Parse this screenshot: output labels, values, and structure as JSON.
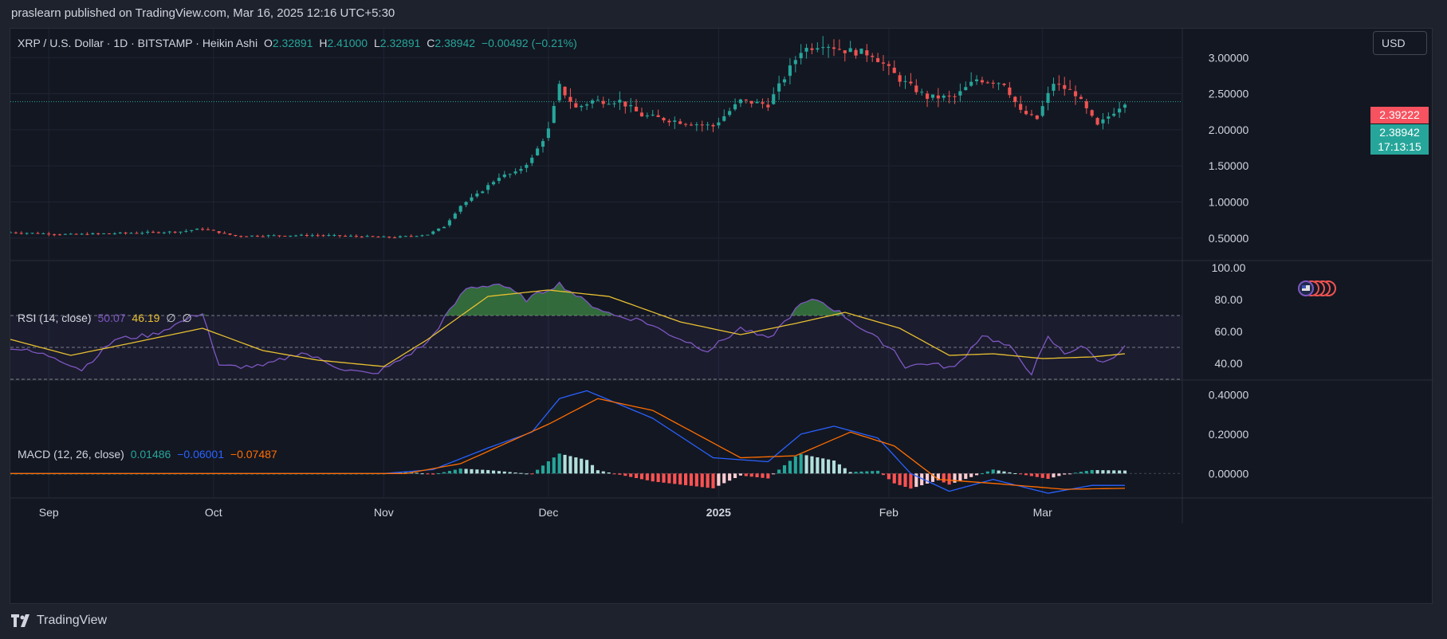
{
  "header": {
    "published": "praslearn published on TradingView.com, Mar 16, 2025 12:16 UTC+5:30"
  },
  "symbol": {
    "name": "XRP / U.S. Dollar · 1D · BITSTAMP · Heikin Ashi",
    "o_label": "O",
    "o": "2.32891",
    "h_label": "H",
    "h": "2.41000",
    "l_label": "L",
    "l": "2.32891",
    "c_label": "C",
    "c": "2.38942",
    "change": "−0.00492 (−0.21%)"
  },
  "currency": "USD",
  "price_tag": "2.39222",
  "close_tag": {
    "price": "2.38942",
    "countdown": "17:13:15"
  },
  "rsi_legend": {
    "label": "RSI (14, close)",
    "rsi": "50.07",
    "ma": "46.19",
    "s1": "∅",
    "s2": "∅"
  },
  "macd_legend": {
    "label": "MACD (12, 26, close)",
    "hist": "0.01486",
    "macd": "−0.06001",
    "signal": "−0.07487"
  },
  "footer": {
    "brand": "TradingView"
  },
  "colors": {
    "up": "#26a69a",
    "down": "#ef5350",
    "rsi": "#7e57c2",
    "rsi_ma": "#e8c030",
    "macd": "#2962ff",
    "signal": "#ff6d00",
    "hist_up_dark": "#26a69a",
    "hist_up_light": "#b2dfdb",
    "hist_down_dark": "#ff5252",
    "hist_down_light": "#ffcdd2"
  },
  "chart_data": [
    {
      "type": "candlestick",
      "pane": "price",
      "y_axis_ticks": [
        "3.00000",
        "2.50000",
        "2.00000",
        "1.50000",
        "1.00000",
        "0.50000"
      ],
      "y_ticks": [
        3.0,
        2.5,
        2.0,
        1.5,
        1.0,
        0.5
      ],
      "ylim": [
        0.2,
        3.4
      ],
      "x_labels": [
        "Sep",
        "Oct",
        "Nov",
        "Dec",
        "2025",
        "Feb",
        "Mar"
      ],
      "x_label_dates": [
        "2024-09-01",
        "2024-10-01",
        "2024-11-01",
        "2024-12-01",
        "2025-01-01",
        "2025-02-01",
        "2025-03-01"
      ],
      "date_range": [
        "2024-08-25",
        "2025-03-16"
      ],
      "current_price": 2.38942,
      "close_anchors": [
        [
          "2024-08-25",
          0.58
        ],
        [
          "2024-09-05",
          0.55
        ],
        [
          "2024-09-15",
          0.57
        ],
        [
          "2024-09-25",
          0.59
        ],
        [
          "2024-09-29",
          0.63
        ],
        [
          "2024-10-05",
          0.53
        ],
        [
          "2024-10-20",
          0.54
        ],
        [
          "2024-11-03",
          0.51
        ],
        [
          "2024-11-09",
          0.55
        ],
        [
          "2024-11-12",
          0.66
        ],
        [
          "2024-11-15",
          0.95
        ],
        [
          "2024-11-18",
          1.1
        ],
        [
          "2024-11-22",
          1.35
        ],
        [
          "2024-11-25",
          1.4
        ],
        [
          "2024-11-28",
          1.6
        ],
        [
          "2024-12-01",
          2.0
        ],
        [
          "2024-12-03",
          2.6
        ],
        [
          "2024-12-06",
          2.3
        ],
        [
          "2024-12-09",
          2.4
        ],
        [
          "2024-12-14",
          2.4
        ],
        [
          "2024-12-18",
          2.2
        ],
        [
          "2024-12-26",
          2.1
        ],
        [
          "2024-12-31",
          2.05
        ],
        [
          "2025-01-05",
          2.4
        ],
        [
          "2025-01-10",
          2.35
        ],
        [
          "2025-01-16",
          3.1
        ],
        [
          "2025-01-20",
          3.2
        ],
        [
          "2025-01-24",
          3.1
        ],
        [
          "2025-01-29",
          3.05
        ],
        [
          "2025-02-03",
          2.7
        ],
        [
          "2025-02-08",
          2.45
        ],
        [
          "2025-02-13",
          2.45
        ],
        [
          "2025-02-17",
          2.7
        ],
        [
          "2025-02-22",
          2.65
        ],
        [
          "2025-02-25",
          2.25
        ],
        [
          "2025-02-28",
          2.15
        ],
        [
          "2025-03-03",
          2.65
        ],
        [
          "2025-03-07",
          2.5
        ],
        [
          "2025-03-11",
          2.05
        ],
        [
          "2025-03-16",
          2.39
        ]
      ]
    },
    {
      "type": "line",
      "pane": "rsi",
      "y_axis_ticks": [
        "100.00",
        "80.00",
        "60.00",
        "40.00"
      ],
      "y_ticks": [
        100,
        80,
        60,
        40
      ],
      "ylim": [
        30,
        104
      ],
      "bands": [
        70,
        50,
        30
      ],
      "series": [
        {
          "key": "rsi",
          "name": "RSI",
          "anchors": [
            [
              "2024-08-25",
              50
            ],
            [
              "2024-09-02",
              44
            ],
            [
              "2024-09-07",
              36
            ],
            [
              "2024-09-13",
              55
            ],
            [
              "2024-09-20",
              58
            ],
            [
              "2024-09-29",
              72
            ],
            [
              "2024-10-02",
              38
            ],
            [
              "2024-10-10",
              38
            ],
            [
              "2024-10-17",
              47
            ],
            [
              "2024-10-25",
              36
            ],
            [
              "2024-10-30",
              33
            ],
            [
              "2024-11-03",
              40
            ],
            [
              "2024-11-09",
              53
            ],
            [
              "2024-11-12",
              68
            ],
            [
              "2024-11-16",
              87
            ],
            [
              "2024-11-22",
              90
            ],
            [
              "2024-11-27",
              80
            ],
            [
              "2024-12-03",
              90
            ],
            [
              "2024-12-08",
              78
            ],
            [
              "2024-12-13",
              70
            ],
            [
              "2024-12-18",
              67
            ],
            [
              "2024-12-22",
              60
            ],
            [
              "2024-12-30",
              48
            ],
            [
              "2025-01-05",
              62
            ],
            [
              "2025-01-10",
              55
            ],
            [
              "2025-01-16",
              77
            ],
            [
              "2025-01-19",
              80
            ],
            [
              "2025-01-23",
              72
            ],
            [
              "2025-01-27",
              62
            ],
            [
              "2025-02-02",
              48
            ],
            [
              "2025-02-04",
              38
            ],
            [
              "2025-02-08",
              40
            ],
            [
              "2025-02-13",
              37
            ],
            [
              "2025-02-18",
              58
            ],
            [
              "2025-02-23",
              50
            ],
            [
              "2025-02-27",
              34
            ],
            [
              "2025-03-02",
              56
            ],
            [
              "2025-03-05",
              46
            ],
            [
              "2025-03-08",
              51
            ],
            [
              "2025-03-12",
              40
            ],
            [
              "2025-03-16",
              50
            ]
          ]
        },
        {
          "key": "ma",
          "name": "RSI-based MA",
          "anchors": [
            [
              "2024-08-25",
              55
            ],
            [
              "2024-09-05",
              45
            ],
            [
              "2024-09-15",
              52
            ],
            [
              "2024-09-29",
              62
            ],
            [
              "2024-10-10",
              48
            ],
            [
              "2024-10-20",
              42
            ],
            [
              "2024-11-01",
              38
            ],
            [
              "2024-11-09",
              55
            ],
            [
              "2024-11-20",
              82
            ],
            [
              "2024-12-01",
              86
            ],
            [
              "2024-12-12",
              82
            ],
            [
              "2024-12-25",
              66
            ],
            [
              "2025-01-05",
              58
            ],
            [
              "2025-01-15",
              65
            ],
            [
              "2025-01-24",
              72
            ],
            [
              "2025-02-03",
              62
            ],
            [
              "2025-02-12",
              45
            ],
            [
              "2025-02-20",
              46
            ],
            [
              "2025-03-01",
              43
            ],
            [
              "2025-03-10",
              44
            ],
            [
              "2025-03-16",
              46
            ]
          ]
        }
      ]
    },
    {
      "type": "macd",
      "pane": "macd",
      "y_axis_ticks": [
        "0.40000",
        "0.20000",
        "0.00000"
      ],
      "y_ticks": [
        0.4,
        0.2,
        0.0
      ],
      "ylim": [
        -0.12,
        0.47
      ],
      "series": [
        {
          "key": "macd",
          "name": "MACD",
          "anchors": [
            [
              "2024-08-25",
              0.0
            ],
            [
              "2024-11-01",
              0.0
            ],
            [
              "2024-11-10",
              0.02
            ],
            [
              "2024-11-20",
              0.13
            ],
            [
              "2024-11-28",
              0.21
            ],
            [
              "2024-12-03",
              0.38
            ],
            [
              "2024-12-08",
              0.42
            ],
            [
              "2024-12-14",
              0.35
            ],
            [
              "2024-12-20",
              0.28
            ],
            [
              "2024-12-31",
              0.08
            ],
            [
              "2025-01-10",
              0.06
            ],
            [
              "2025-01-16",
              0.2
            ],
            [
              "2025-01-22",
              0.24
            ],
            [
              "2025-01-30",
              0.18
            ],
            [
              "2025-02-05",
              0.0
            ],
            [
              "2025-02-12",
              -0.09
            ],
            [
              "2025-02-20",
              -0.03
            ],
            [
              "2025-03-02",
              -0.1
            ],
            [
              "2025-03-10",
              -0.06
            ],
            [
              "2025-03-16",
              -0.06
            ]
          ]
        },
        {
          "key": "signal",
          "name": "Signal",
          "anchors": [
            [
              "2024-08-25",
              0.0
            ],
            [
              "2024-11-05",
              0.0
            ],
            [
              "2024-11-15",
              0.05
            ],
            [
              "2024-12-01",
              0.25
            ],
            [
              "2024-12-10",
              0.38
            ],
            [
              "2024-12-20",
              0.32
            ],
            [
              "2025-01-05",
              0.08
            ],
            [
              "2025-01-15",
              0.09
            ],
            [
              "2025-01-25",
              0.21
            ],
            [
              "2025-02-02",
              0.14
            ],
            [
              "2025-02-10",
              -0.03
            ],
            [
              "2025-02-20",
              -0.05
            ],
            [
              "2025-03-05",
              -0.08
            ],
            [
              "2025-03-16",
              -0.075
            ]
          ]
        }
      ]
    }
  ]
}
